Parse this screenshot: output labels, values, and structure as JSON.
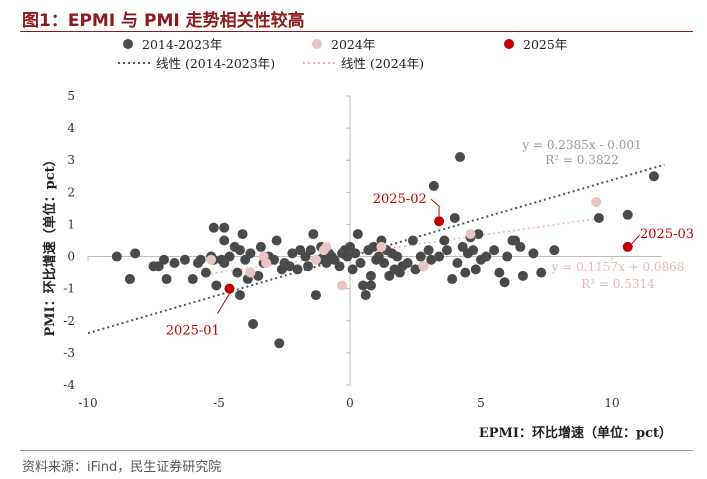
{
  "header": {
    "title": "图1：EPMI 与 PMI 走势相关性较高",
    "source": "资料来源：iFind，民生证券研究院"
  },
  "chart_data": {
    "type": "scatter",
    "xlabel": "EPMI：环比增速（单位：pct）",
    "ylabel": "PMI：环比增速（单位：pct）",
    "xlim": [
      -10,
      12
    ],
    "ylim": [
      -4,
      5
    ],
    "xticks": [
      "-10",
      "-5",
      "0",
      "5",
      "10"
    ],
    "yticks": [
      "5",
      "4",
      "3",
      "2",
      "1",
      "0",
      "-1",
      "-2",
      "-3",
      "-4"
    ],
    "legend": [
      {
        "label": "2014-2023年",
        "kind": "marker",
        "color": "#4a4a4a"
      },
      {
        "label": "2024年",
        "kind": "marker",
        "color": "#e8c4c4"
      },
      {
        "label": "2025年",
        "kind": "marker",
        "color": "#c00000"
      },
      {
        "label": "线性 (2014-2023年)",
        "kind": "line",
        "color": "#555555"
      },
      {
        "label": "线性 (2024年)",
        "kind": "line",
        "color": "#f0b8b8"
      }
    ],
    "series": [
      {
        "name": "2014-2023年",
        "color": "#4a4a4a",
        "points": [
          [
            -8.9,
            0
          ],
          [
            -8.4,
            -0.7
          ],
          [
            -8.2,
            0.1
          ],
          [
            -7.5,
            -0.3
          ],
          [
            -7.3,
            -0.3
          ],
          [
            -7.1,
            -0.1
          ],
          [
            -7.0,
            -0.7
          ],
          [
            -6.7,
            -0.2
          ],
          [
            -6.3,
            -0.1
          ],
          [
            -6.0,
            -0.7
          ],
          [
            -5.8,
            -0.2
          ],
          [
            -5.7,
            -0.1
          ],
          [
            -5.5,
            -0.5
          ],
          [
            -5.3,
            0.0
          ],
          [
            -5.2,
            -0.1
          ],
          [
            -5.2,
            0.9
          ],
          [
            -5.1,
            -0.9
          ],
          [
            -4.9,
            -0.1
          ],
          [
            -4.8,
            0.9
          ],
          [
            -4.8,
            0.5
          ],
          [
            -4.6,
            0.0
          ],
          [
            -4.4,
            0.3
          ],
          [
            -4.3,
            -0.5
          ],
          [
            -4.2,
            -1.2
          ],
          [
            -4.2,
            0.2
          ],
          [
            -4.1,
            0.7
          ],
          [
            -4.0,
            -0.1
          ],
          [
            -3.9,
            -0.7
          ],
          [
            -3.8,
            0.1
          ],
          [
            -3.7,
            -2.1
          ],
          [
            -3.5,
            -0.6
          ],
          [
            -3.4,
            0.3
          ],
          [
            -3.3,
            -0.2
          ],
          [
            -3.1,
            0.0
          ],
          [
            -2.9,
            -0.1
          ],
          [
            -2.8,
            0.5
          ],
          [
            -2.6,
            -0.4
          ],
          [
            -2.5,
            -0.2
          ],
          [
            -2.3,
            -0.3
          ],
          [
            -2.2,
            0.1
          ],
          [
            -2.0,
            -0.4
          ],
          [
            -1.9,
            0.2
          ],
          [
            -1.7,
            0.0
          ],
          [
            -1.6,
            -0.3
          ],
          [
            -1.5,
            0.2
          ],
          [
            -1.4,
            0.7
          ],
          [
            -1.3,
            -1.2
          ],
          [
            -1.2,
            -0.1
          ],
          [
            -1.1,
            0.3
          ],
          [
            -1.0,
            0.0
          ],
          [
            -0.9,
            -0.2
          ],
          [
            -0.8,
            0.1
          ],
          [
            -0.7,
            0.0
          ],
          [
            -0.6,
            -0.1
          ],
          [
            -0.4,
            -0.3
          ],
          [
            -0.3,
            0.1
          ],
          [
            -0.2,
            0.2
          ],
          [
            -0.1,
            0.0
          ],
          [
            0.0,
            0.3
          ],
          [
            0.1,
            -0.4
          ],
          [
            0.2,
            0.1
          ],
          [
            0.3,
            0.7
          ],
          [
            0.4,
            -0.2
          ],
          [
            0.5,
            -0.9
          ],
          [
            0.6,
            -1.2
          ],
          [
            0.7,
            0.2
          ],
          [
            0.8,
            -0.6
          ],
          [
            0.9,
            0.3
          ],
          [
            1.0,
            -0.1
          ],
          [
            1.1,
            0.0
          ],
          [
            1.2,
            0.5
          ],
          [
            1.3,
            -0.2
          ],
          [
            1.4,
            0.2
          ],
          [
            1.5,
            -0.6
          ],
          [
            1.6,
            0.1
          ],
          [
            1.7,
            -0.4
          ],
          [
            1.8,
            0.0
          ],
          [
            1.9,
            -0.5
          ],
          [
            2.0,
            -0.3
          ],
          [
            2.2,
            -0.2
          ],
          [
            2.4,
            0.5
          ],
          [
            2.5,
            -0.4
          ],
          [
            2.7,
            0.0
          ],
          [
            2.8,
            -0.3
          ],
          [
            3.0,
            0.2
          ],
          [
            3.1,
            -0.1
          ],
          [
            3.2,
            2.2
          ],
          [
            3.4,
            0.0
          ],
          [
            3.6,
            0.5
          ],
          [
            3.7,
            0.2
          ],
          [
            3.9,
            -0.7
          ],
          [
            4.0,
            1.2
          ],
          [
            4.1,
            -0.2
          ],
          [
            4.2,
            3.1
          ],
          [
            4.3,
            0.3
          ],
          [
            4.4,
            -0.5
          ],
          [
            4.5,
            0.1
          ],
          [
            4.6,
            0.6
          ],
          [
            4.7,
            0.2
          ],
          [
            4.8,
            -0.4
          ],
          [
            4.9,
            0.7
          ],
          [
            5.0,
            -0.1
          ],
          [
            5.2,
            0.0
          ],
          [
            5.5,
            0.2
          ],
          [
            5.7,
            -0.5
          ],
          [
            5.9,
            -0.8
          ],
          [
            6.0,
            0.0
          ],
          [
            6.2,
            0.5
          ],
          [
            6.3,
            0.5
          ],
          [
            6.5,
            0.3
          ],
          [
            6.6,
            -0.6
          ],
          [
            7.0,
            0.1
          ],
          [
            7.3,
            -0.5
          ],
          [
            7.8,
            0.2
          ],
          [
            9.5,
            1.2
          ],
          [
            10.6,
            1.3
          ],
          [
            11.6,
            2.5
          ],
          [
            -2.7,
            -2.7
          ],
          [
            -4.8,
            -0.2
          ],
          [
            0.8,
            -0.9
          ]
        ]
      },
      {
        "name": "2024年",
        "color": "#e8c4c4",
        "points": [
          [
            -5.3,
            -0.1
          ],
          [
            -3.8,
            -0.5
          ],
          [
            -3.3,
            0.0
          ],
          [
            -3.2,
            -0.2
          ],
          [
            -1.3,
            -0.1
          ],
          [
            -1.0,
            0.2
          ],
          [
            -0.9,
            0.3
          ],
          [
            -0.3,
            -0.9
          ],
          [
            1.2,
            0.3
          ],
          [
            2.8,
            -0.3
          ],
          [
            4.6,
            0.7
          ],
          [
            9.4,
            1.7
          ]
        ]
      },
      {
        "name": "2025年",
        "color": "#c00000",
        "points": [
          [
            -4.6,
            -1.0
          ],
          [
            3.4,
            1.1
          ],
          [
            10.6,
            0.3
          ]
        ]
      }
    ],
    "trendlines": [
      {
        "name": "线性 (2014-2023年)",
        "slope": 0.2385,
        "intercept": -0.001,
        "x_range": [
          -10,
          12
        ],
        "color": "#555555",
        "equation": "y = 0.2385x - 0.001",
        "r2": "R² = 0.3822"
      },
      {
        "name": "线性 (2024年)",
        "slope": 0.1157,
        "intercept": 0.0868,
        "x_range": [
          -5.5,
          9.5
        ],
        "color": "#f0b8b8",
        "equation": "y = 0.1157x + 0.0868",
        "r2": "R² = 0.5314"
      }
    ],
    "annotations": [
      {
        "text": "2025-01",
        "point": [
          -4.6,
          -1.0
        ],
        "label_at": [
          -6.0,
          -2.3
        ],
        "color": "#c00000"
      },
      {
        "text": "2025-02",
        "point": [
          3.4,
          1.1
        ],
        "label_at": [
          1.9,
          1.8
        ],
        "color": "#c00000"
      },
      {
        "text": "2025-03",
        "point": [
          10.6,
          0.3
        ],
        "label_at": [
          12.1,
          0.7
        ],
        "color": "#c00000"
      }
    ]
  }
}
